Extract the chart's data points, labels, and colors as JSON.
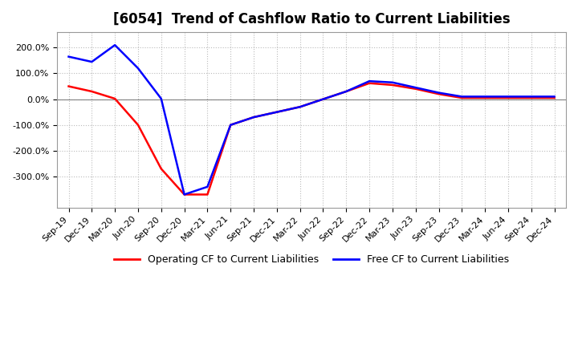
{
  "title": "[6054]  Trend of Cashflow Ratio to Current Liabilities",
  "x_labels": [
    "Sep-19",
    "Dec-19",
    "Mar-20",
    "Jun-20",
    "Sep-20",
    "Dec-20",
    "Mar-21",
    "Jun-21",
    "Sep-21",
    "Dec-21",
    "Mar-22",
    "Jun-22",
    "Sep-22",
    "Dec-22",
    "Mar-23",
    "Jun-23",
    "Sep-23",
    "Dec-23",
    "Mar-24",
    "Jun-24",
    "Sep-24",
    "Dec-24"
  ],
  "operating_cf": [
    0.5,
    0.3,
    0.02,
    -1.0,
    -2.7,
    -3.7,
    -3.7,
    -1.0,
    -0.7,
    -0.5,
    -0.3,
    0.0,
    0.3,
    0.62,
    0.55,
    0.4,
    0.2,
    0.05,
    0.05,
    0.05,
    0.05,
    0.05
  ],
  "free_cf": [
    1.65,
    1.45,
    2.1,
    1.2,
    0.02,
    -3.7,
    -3.4,
    -1.0,
    -0.7,
    -0.5,
    -0.3,
    0.0,
    0.3,
    0.7,
    0.65,
    0.45,
    0.25,
    0.1,
    0.1,
    0.1,
    0.1,
    0.1
  ],
  "operating_color": "#ff0000",
  "free_color": "#0000ff",
  "ylim_min": -4.2,
  "ylim_max": 2.6,
  "yticks": [
    2.0,
    1.0,
    0.0,
    -1.0,
    -2.0,
    -3.0
  ],
  "ytick_labels": [
    "200.0%",
    "100.0%",
    "0.0%",
    "-100.0%",
    "-200.0%",
    "-300.0%"
  ],
  "background_color": "#ffffff",
  "grid_color": "#bbbbbb",
  "legend_operating": "Operating CF to Current Liabilities",
  "legend_free": "Free CF to Current Liabilities",
  "title_fontsize": 12,
  "axis_fontsize": 8,
  "legend_fontsize": 9
}
